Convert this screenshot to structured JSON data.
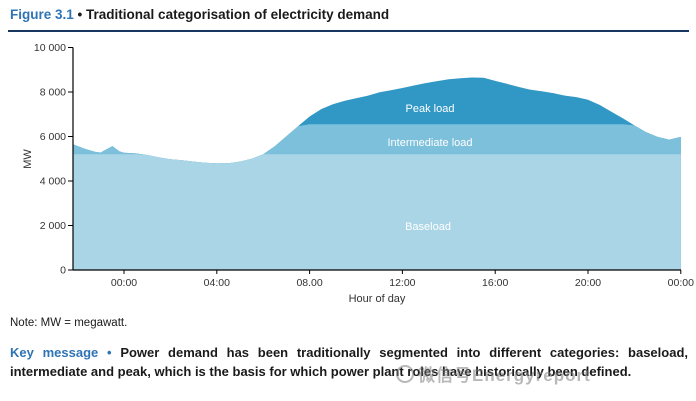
{
  "page": {
    "title": {
      "label": "Figure 3.1",
      "bullet": "•",
      "text": "Traditional categorisation of electricity demand"
    },
    "note": "Note: MW = megawatt.",
    "key_message": {
      "label": "Key message",
      "bullet": "•",
      "line1": "Power demand has been traditionally segmented into different categories: baseload,",
      "line2": "intermediate and peak, which is the basis for which power plant roles have historically been defined."
    },
    "watermark": {
      "text": "微信号Energyreport"
    }
  },
  "colors": {
    "accent_blue": "#2E74B5",
    "title_rule": "#17375E",
    "baseload_fill": "#A9D5E6",
    "intermediate_fill": "#7DC0DB",
    "peak_fill": "#3197C4",
    "axis": "#000000",
    "tick_text": "#333333",
    "band_label_text": "#FFFFFF"
  },
  "chart_data": {
    "type": "area",
    "title": "Traditional categorisation of electricity demand",
    "xlabel": "Hour of day",
    "ylabel": "MW",
    "ylim": [
      0,
      10000
    ],
    "grid": false,
    "legend": "labels drawn inside stacked areas",
    "y_ticks": [
      0,
      2000,
      4000,
      6000,
      8000,
      10000
    ],
    "y_tick_labels": [
      "0",
      "2 000",
      "4 000",
      "6 000",
      "8 000",
      "10 000"
    ],
    "x_tick_hours": [
      0,
      4,
      8,
      12,
      16,
      20,
      24
    ],
    "x_tick_labels": [
      "00:00",
      "04:00",
      "08.00",
      "12:00",
      "16:00",
      "20:00",
      "00:00"
    ],
    "x_domain_hours": [
      -2.2,
      24
    ],
    "bands": {
      "baseload_top_mw": 5200,
      "intermediate_top_mw": 6550,
      "labels": {
        "peak": "Peak load",
        "intermediate": "Intermediate load",
        "baseload": "Baseload"
      }
    },
    "demand_curve_h_mw": [
      [
        -2.2,
        5650
      ],
      [
        -1.7,
        5450
      ],
      [
        -1.2,
        5300
      ],
      [
        -1.0,
        5280
      ],
      [
        -0.8,
        5400
      ],
      [
        -0.5,
        5570
      ],
      [
        -0.2,
        5330
      ],
      [
        0,
        5270
      ],
      [
        0.5,
        5240
      ],
      [
        1,
        5170
      ],
      [
        1.5,
        5060
      ],
      [
        2,
        4980
      ],
      [
        2.5,
        4930
      ],
      [
        3,
        4870
      ],
      [
        3.5,
        4820
      ],
      [
        4,
        4790
      ],
      [
        4.5,
        4800
      ],
      [
        5,
        4870
      ],
      [
        5.5,
        5000
      ],
      [
        6,
        5200
      ],
      [
        6.5,
        5560
      ],
      [
        7,
        6010
      ],
      [
        7.5,
        6460
      ],
      [
        8,
        6900
      ],
      [
        8.5,
        7230
      ],
      [
        9,
        7450
      ],
      [
        9.5,
        7600
      ],
      [
        10,
        7720
      ],
      [
        10.5,
        7830
      ],
      [
        11,
        7980
      ],
      [
        11.5,
        8080
      ],
      [
        12,
        8180
      ],
      [
        12.5,
        8290
      ],
      [
        13,
        8400
      ],
      [
        13.5,
        8490
      ],
      [
        14,
        8570
      ],
      [
        14.5,
        8620
      ],
      [
        15,
        8650
      ],
      [
        15.5,
        8640
      ],
      [
        16,
        8500
      ],
      [
        16.5,
        8370
      ],
      [
        17,
        8230
      ],
      [
        17.5,
        8110
      ],
      [
        18,
        8030
      ],
      [
        18.5,
        7950
      ],
      [
        19,
        7840
      ],
      [
        19.5,
        7770
      ],
      [
        20,
        7650
      ],
      [
        20.5,
        7420
      ],
      [
        21,
        7120
      ],
      [
        21.5,
        6820
      ],
      [
        22,
        6500
      ],
      [
        22.5,
        6200
      ],
      [
        23,
        5980
      ],
      [
        23.5,
        5860
      ],
      [
        24,
        5980
      ]
    ]
  }
}
